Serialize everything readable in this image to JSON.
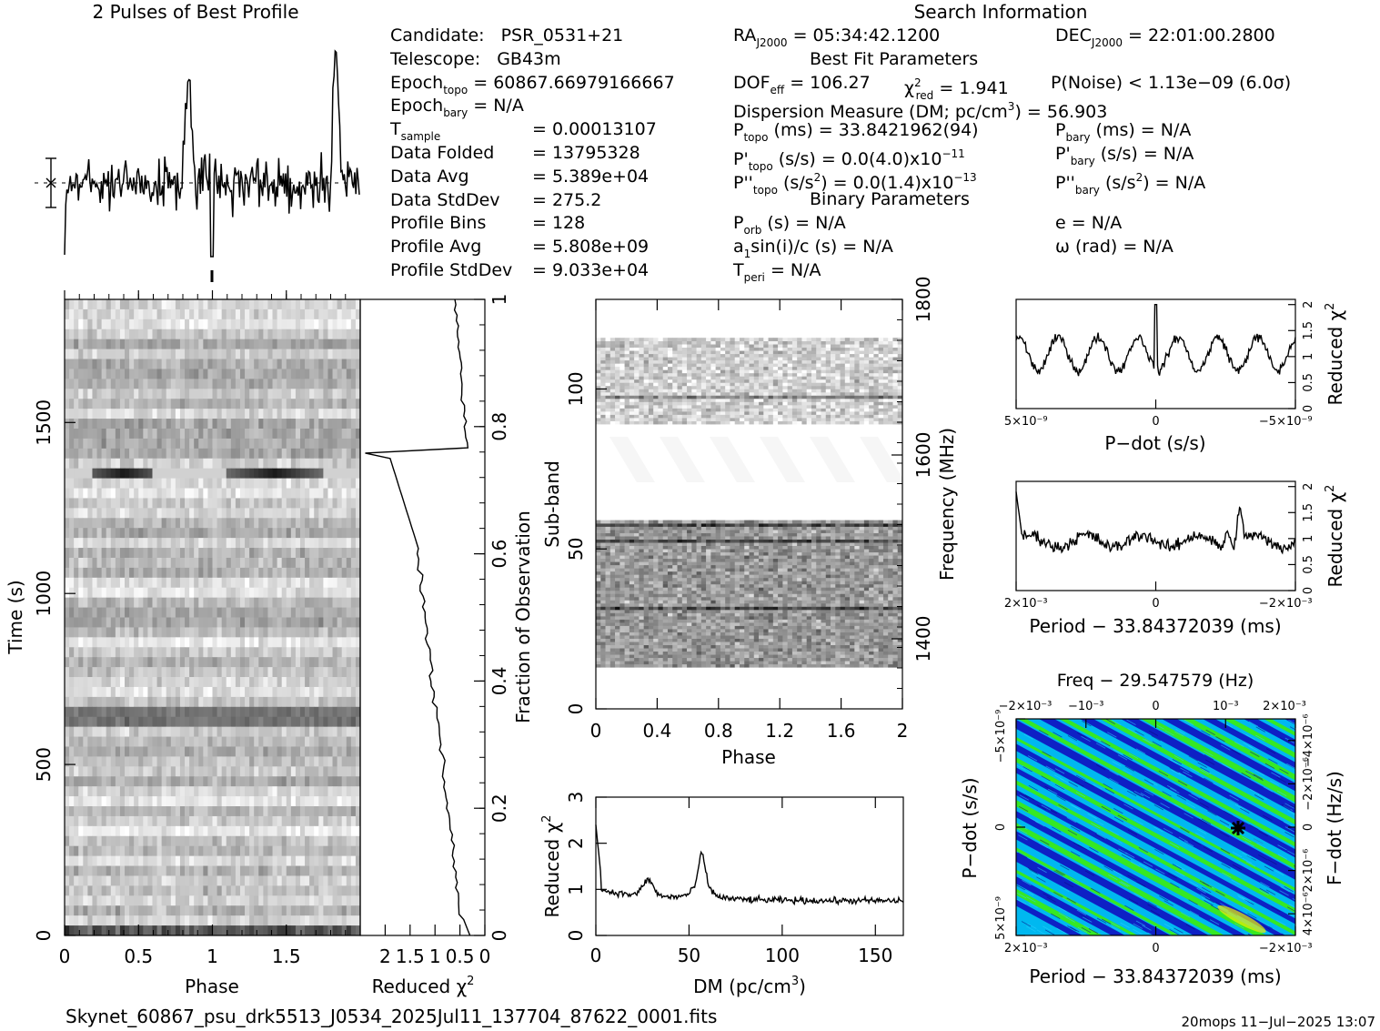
{
  "header": {
    "profile_title": "2 Pulses of Best Profile",
    "search_title": "Search Information"
  },
  "info_left": [
    {
      "label": "Candidate:",
      "value": "PSR_0531+21"
    },
    {
      "label": "Telescope:",
      "value": "GB43m"
    },
    {
      "label": "Epoch",
      "sub": "topo",
      "value": "= 60867.66979166667"
    },
    {
      "label": "Epoch",
      "sub": "bary",
      "value": "= N/A"
    },
    {
      "label": "T",
      "sub": "sample",
      "value": "=    0.00013107"
    },
    {
      "label": "Data Folded",
      "value": "=    13795328"
    },
    {
      "label": "Data Avg",
      "value": "=    5.389e+04"
    },
    {
      "label": "Data StdDev",
      "value": "=    275.2"
    },
    {
      "label": "Profile Bins",
      "value": "=    128"
    },
    {
      "label": "Profile Avg",
      "value": "=    5.808e+09"
    },
    {
      "label": "Profile StdDev",
      "value": "=    9.033e+04"
    }
  ],
  "info_right": {
    "ra": "RA",
    "ra_sub": "J2000",
    "ra_value": "= 05:34:42.1200",
    "dec": "DEC",
    "dec_sub": "J2000",
    "dec_value": "= 22:01:00.2800",
    "best_fit_title": "Best Fit Parameters",
    "dof_label": "DOF",
    "dof_sub": "eff",
    "dof_value": "= 106.27",
    "chi_label": "χ",
    "chi_sup": "2",
    "chi_sub": "red",
    "chi_value": "= 1.941",
    "pnoise": "P(Noise) < 1.13e−09   (6.0σ)",
    "dm_line_a": "Dispersion Measure (DM; pc/cm",
    "dm_line_sup": "3",
    "dm_line_b": ") = 56.903",
    "ptopo_label": "P",
    "ptopo_sub": "topo",
    "ptopo_value": "(ms) =  33.8421962(94)",
    "pbary_label": "P",
    "pbary_sub": "bary",
    "pbary_value": "(ms) = N/A",
    "pdtopo_label": "P'",
    "pdtopo_sub": "topo",
    "pdtopo_value": "(s/s) = 0.0(4.0)x10",
    "pdtopo_sup": "−11",
    "pdbary_label": "P'",
    "pdbary_sub": "bary",
    "pdbary_value": "(s/s) = N/A",
    "pddtopo_label": "P''",
    "pddtopo_sub": "topo",
    "pddtopo_value_a": "(s/s",
    "pddtopo_value_sup": "2",
    "pddtopo_value_b": ") = 0.0(1.4)x10",
    "pddtopo_sup": "−13",
    "pddbary_label": "P''",
    "pddbary_sub": "bary",
    "pddbary_value_a": "(s/s",
    "pddbary_value_sup": "2",
    "pddbary_value_b": ") = N/A",
    "binary_title": "Binary Parameters",
    "porb_label": "P",
    "porb_sub": "orb",
    "porb_value": "(s) = N/A",
    "e_value": "e = N/A",
    "a1_label": "a",
    "a1_sub": "1",
    "a1_value": "sin(i)/c (s) = N/A",
    "omega_value": "ω (rad) = N/A",
    "tperi_label": "T",
    "tperi_sub": "peri",
    "tperi_value": "= N/A"
  },
  "footer": {
    "filename": "Skynet_60867_psu_drk5513_J0534_2025Jul11_137704_87622_0001.fits",
    "stamp": "20mops  11−Jul−2025 13:07"
  },
  "colors": {
    "line": "#000000",
    "grid_dark": "#000000",
    "map_low": "#1010c0",
    "map_mid": "#00b8f0",
    "map_high": "#40f000",
    "map_peak": "#f0f000"
  },
  "chart_data": [
    {
      "type": "line",
      "name": "profile",
      "title": "2 Pulses of Best Profile",
      "xlabel": "",
      "ylabel": "",
      "pulse_phases": [
        0.84,
        1.84
      ],
      "xlim": [
        0,
        2
      ]
    },
    {
      "type": "heatmap",
      "name": "time-phase",
      "xlabel": "Phase",
      "ylabel": "Time (s)",
      "xlim": [
        0,
        2
      ],
      "ylim": [
        0,
        1860
      ],
      "x_ticks": [
        "0",
        "0.5",
        "1",
        "1.5"
      ],
      "y_ticks": [
        "0",
        "500",
        "1000",
        "1500"
      ],
      "bright_band_time": 1380,
      "dark_rows_time": [
        0,
        640,
        620
      ]
    },
    {
      "type": "line",
      "name": "time-chi",
      "xlabel": "Reduced χ²",
      "right_label": "Fraction of Observation",
      "x_ticks": [
        "2",
        "1.5",
        "1",
        "0.5",
        "0"
      ],
      "y_ticks": [
        "0",
        "0.2",
        "0.4",
        "0.6",
        "0.8",
        "1"
      ],
      "xlim": [
        2.5,
        0
      ]
    },
    {
      "type": "heatmap",
      "name": "subband-phase",
      "xlabel": "Phase",
      "ylabel": "Sub-band",
      "right_label": "Frequency (MHz)",
      "xlim": [
        0,
        2
      ],
      "ylim": [
        0,
        128
      ],
      "x_ticks": [
        "0",
        "0.4",
        "0.8",
        "1.2",
        "1.6",
        "2"
      ],
      "y_ticks": [
        "0",
        "50",
        "100"
      ],
      "freq_ticks": [
        "1400",
        "1600",
        "1800"
      ],
      "filled_bands": [
        [
          13,
          59
        ],
        [
          89,
          116
        ]
      ]
    },
    {
      "type": "line",
      "name": "dm-chi",
      "xlabel": "DM (pc/cm³)",
      "ylabel": "Reduced χ²",
      "xlim": [
        0,
        165
      ],
      "ylim": [
        0,
        3
      ],
      "x_ticks": [
        "0",
        "50",
        "100",
        "150"
      ],
      "y_ticks": [
        "0",
        "1",
        "2",
        "3"
      ],
      "peak_dm": 56.903,
      "peak_chi": 2.0
    },
    {
      "type": "line",
      "name": "pdot-chi",
      "xlabel": "P−dot (s/s)",
      "ylabel": "Reduced χ²",
      "x_ticks": [
        "5×10⁻⁹",
        "0",
        "−5×10⁻⁹"
      ],
      "y_ticks": [
        "0",
        "0.5",
        "1",
        "1.5",
        "2"
      ],
      "ylim": [
        0,
        2.1
      ]
    },
    {
      "type": "line",
      "name": "period-chi",
      "xlabel": "Period − 33.84372039 (ms)",
      "ylabel": "Reduced χ²",
      "x_ticks": [
        "2×10⁻³",
        "0",
        "−2×10⁻³"
      ],
      "y_ticks": [
        "0",
        "0.5",
        "1",
        "1.5",
        "2"
      ],
      "ylim": [
        0,
        2.1
      ]
    },
    {
      "type": "heatmap",
      "name": "p-pdot",
      "title": "Freq − 29.547579 (Hz)",
      "xlabel": "Period − 33.84372039 (ms)",
      "ylabel": "P−dot (s/s)",
      "right_label": "F−dot (Hz/s)",
      "top_ticks": [
        "−2×10⁻³",
        "−10⁻³",
        "0",
        "10⁻³",
        "2×10⁻³"
      ],
      "bottom_ticks": [
        "2×10⁻³",
        "0",
        "−2×10⁻³"
      ],
      "left_ticks": [
        "−5×10⁻⁹",
        "0",
        "5×10⁻⁹"
      ],
      "right_ticks": [
        "4×10⁻⁶",
        "2×10⁻⁶",
        "0",
        "−2×10⁻⁶",
        "−4×10⁻⁶"
      ],
      "best_marker": [
        -1.5,
        0
      ]
    }
  ]
}
